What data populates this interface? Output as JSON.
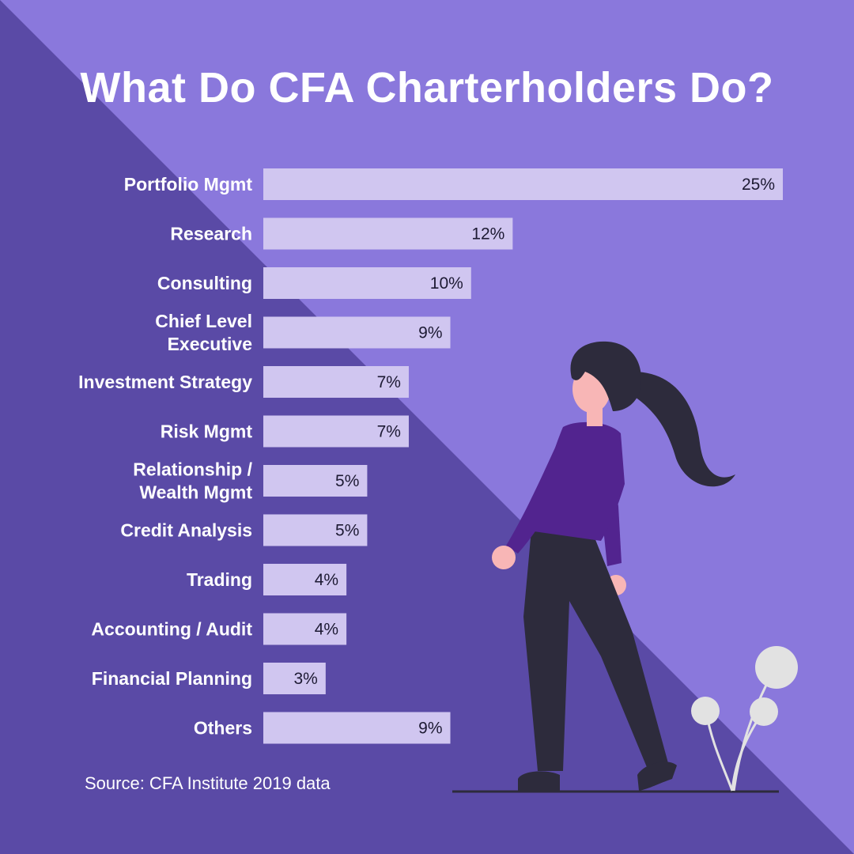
{
  "colors": {
    "bg_light": "#8a78dc",
    "bg_dark": "#5a4aa6",
    "bar": "#d0c6f0",
    "shirt": "#52248f",
    "pants": "#2d2b3c",
    "hair": "#2d2b3c",
    "skin": "#f8b6b6",
    "plant": "#e2e2e2"
  },
  "title": "What Do CFA Charterholders Do?",
  "source": "Source: CFA Institute 2019 data",
  "chart_data": {
    "type": "bar",
    "orientation": "horizontal",
    "categories": [
      [
        "Portfolio Mgmt"
      ],
      [
        "Research"
      ],
      [
        "Consulting"
      ],
      [
        "Chief Level",
        "Executive"
      ],
      [
        "Investment Strategy"
      ],
      [
        "Risk Mgmt"
      ],
      [
        "Relationship /",
        "Wealth Mgmt"
      ],
      [
        "Credit Analysis"
      ],
      [
        "Trading"
      ],
      [
        "Accounting / Audit"
      ],
      [
        "Financial Planning"
      ],
      [
        "Others"
      ]
    ],
    "values": [
      25,
      12,
      10,
      9,
      7,
      7,
      5,
      5,
      4,
      4,
      3,
      9
    ],
    "value_labels": [
      "25%",
      "12%",
      "10%",
      "9%",
      "7%",
      "7%",
      "5%",
      "5%",
      "4%",
      "4%",
      "3%",
      "9%"
    ],
    "unit": "%",
    "xlim": [
      0,
      25
    ],
    "grid": false,
    "legend": "none"
  }
}
